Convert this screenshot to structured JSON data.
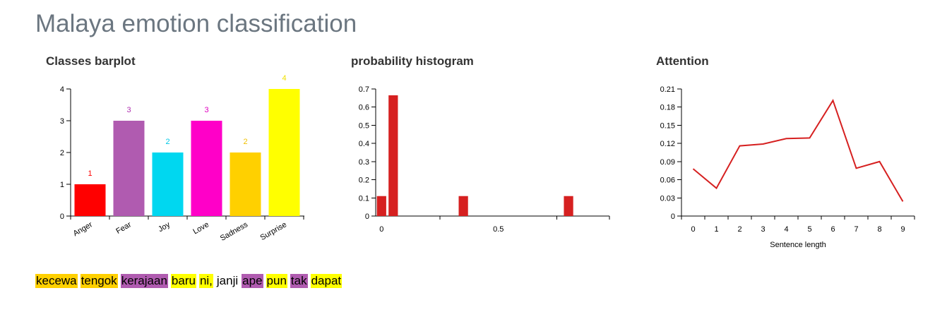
{
  "title": "Malaya emotion classification",
  "panels": {
    "barplot_title": "Classes barplot",
    "histogram_title": "probability histogram",
    "attention_title": "Attention"
  },
  "chart_data": [
    {
      "type": "bar",
      "title": "Classes barplot",
      "categories": [
        "Anger",
        "Fear",
        "Joy",
        "Love",
        "Sadness",
        "Surprise"
      ],
      "values": [
        1,
        3,
        2,
        3,
        2,
        4
      ],
      "colors": [
        "#ff0000",
        "#b05bb0",
        "#00d7f0",
        "#ff00c8",
        "#ffd000",
        "#ffff00"
      ],
      "label_colors": [
        "#ff0000",
        "#b030b0",
        "#00c8e6",
        "#e000c0",
        "#f0c000",
        "#f0e000"
      ],
      "yticks": [
        0,
        1,
        2,
        3,
        4
      ],
      "ylim": [
        0,
        4
      ]
    },
    {
      "type": "bar",
      "title": "probability histogram",
      "bins": [
        {
          "x0": -0.02,
          "x1": 0.02,
          "value": 0.11
        },
        {
          "x0": 0.03,
          "x1": 0.07,
          "value": 0.665
        },
        {
          "x0": 0.33,
          "x1": 0.37,
          "value": 0.11
        },
        {
          "x0": 0.78,
          "x1": 0.82,
          "value": 0.11
        }
      ],
      "color": "#d62020",
      "xlim": [
        -0.025,
        0.975
      ],
      "xticks": [
        "0",
        "0.5"
      ],
      "xtick_values": [
        0,
        0.5
      ],
      "yticks": [
        "0",
        "0.1",
        "0.2",
        "0.3",
        "0.4",
        "0.5",
        "0.6",
        "0.7"
      ],
      "ytick_values": [
        0,
        0.1,
        0.2,
        0.3,
        0.4,
        0.5,
        0.6,
        0.7
      ],
      "ylim": [
        0,
        0.7
      ]
    },
    {
      "type": "line",
      "title": "Attention",
      "x": [
        0,
        1,
        2,
        3,
        4,
        5,
        6,
        7,
        8,
        9
      ],
      "values": [
        0.078,
        0.046,
        0.116,
        0.119,
        0.128,
        0.129,
        0.191,
        0.079,
        0.09,
        0.024
      ],
      "color": "#d62020",
      "xlabel": "Sentence length",
      "xlim": [
        -0.5,
        9.5
      ],
      "yticks": [
        "0",
        "0.03",
        "0.06",
        "0.09",
        "0.12",
        "0.15",
        "0.18",
        "0.21"
      ],
      "ytick_values": [
        0,
        0.03,
        0.06,
        0.09,
        0.12,
        0.15,
        0.18,
        0.21
      ],
      "ylim": [
        0,
        0.21
      ]
    }
  ],
  "sentence": [
    {
      "text": "kecewa",
      "color": "#ffd000"
    },
    {
      "text": "tengok",
      "color": "#ffd000"
    },
    {
      "text": "kerajaan",
      "color": "#b05bb0"
    },
    {
      "text": "baru",
      "color": "#ffff00"
    },
    {
      "text": "ni,",
      "color": "#ffff00"
    },
    {
      "text": "janji",
      "color": "#ffffff"
    },
    {
      "text": "ape",
      "color": "#b05bb0"
    },
    {
      "text": "pun",
      "color": "#ffff00"
    },
    {
      "text": "tak",
      "color": "#b05bb0"
    },
    {
      "text": "dapat",
      "color": "#ffff00"
    }
  ]
}
